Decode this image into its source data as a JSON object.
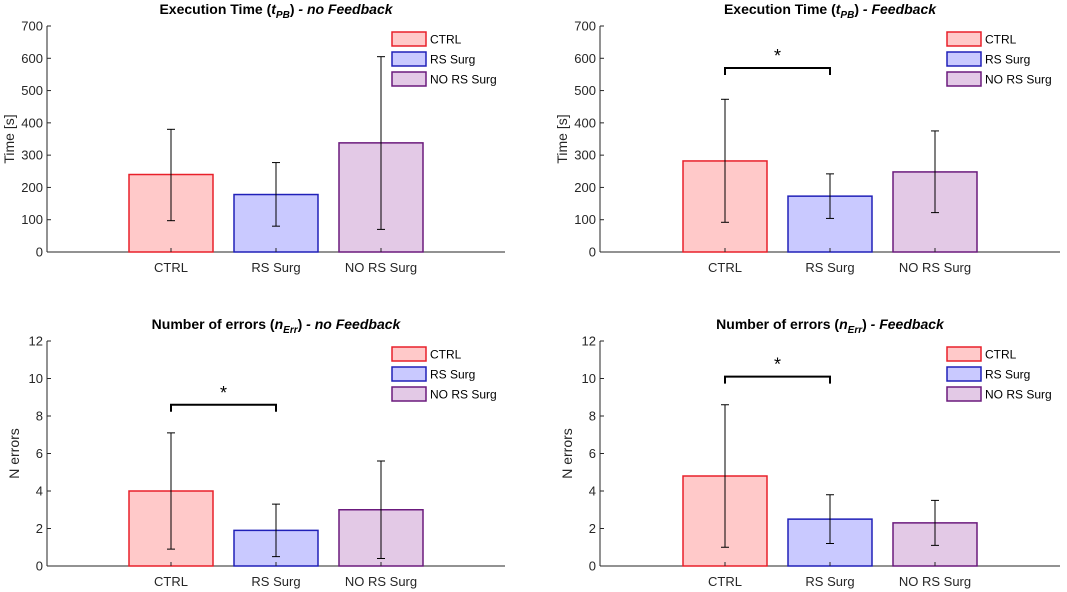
{
  "colors": {
    "CTRL": {
      "fill": "#ffc9c9",
      "stroke": "#e8202a"
    },
    "RS Surg": {
      "fill": "#c9c9ff",
      "stroke": "#2020b8"
    },
    "NO RS Surg": {
      "fill": "#e3c9e6",
      "stroke": "#6b1a7d"
    }
  },
  "chart_data": [
    {
      "type": "bar",
      "title_main": "Execution Time (",
      "title_var": "t",
      "title_sub": "PB",
      "title_close": ")",
      "title_suffix": " - no Feedback",
      "ylabel": "Time [s]",
      "ylim": [
        0,
        700
      ],
      "yticks": [
        0,
        100,
        200,
        300,
        400,
        500,
        600,
        700
      ],
      "categories": [
        "CTRL",
        "RS Surg",
        "NO RS Surg"
      ],
      "values": [
        240,
        178,
        338
      ],
      "err_low": [
        97,
        80,
        70
      ],
      "err_high": [
        380,
        277,
        605
      ],
      "legend": [
        "CTRL",
        "RS Surg",
        "NO RS Surg"
      ],
      "significance": null
    },
    {
      "type": "bar",
      "title_main": "Execution Time (",
      "title_var": "t",
      "title_sub": "PB",
      "title_close": ")",
      "title_suffix": " - Feedback",
      "ylabel": "Time [s]",
      "ylim": [
        0,
        700
      ],
      "yticks": [
        0,
        100,
        200,
        300,
        400,
        500,
        600,
        700
      ],
      "categories": [
        "CTRL",
        "RS Surg",
        "NO RS Surg"
      ],
      "values": [
        282,
        173,
        248
      ],
      "err_low": [
        92,
        104,
        122
      ],
      "err_high": [
        473,
        242,
        375
      ],
      "legend": [
        "CTRL",
        "RS Surg",
        "NO RS Surg"
      ],
      "significance": {
        "from": 0,
        "to": 1,
        "y": 570,
        "label": "*"
      }
    },
    {
      "type": "bar",
      "title_main": "Number of errors (",
      "title_var": "n",
      "title_sub": "Err",
      "title_close": ")",
      "title_suffix": " - no Feedback",
      "ylabel": "N errors",
      "ylim": [
        0,
        12
      ],
      "yticks": [
        0,
        2,
        4,
        6,
        8,
        10,
        12
      ],
      "categories": [
        "CTRL",
        "RS Surg",
        "NO RS Surg"
      ],
      "values": [
        4.0,
        1.9,
        3.0
      ],
      "err_low": [
        0.9,
        0.5,
        0.4
      ],
      "err_high": [
        7.1,
        3.3,
        5.6
      ],
      "legend": [
        "CTRL",
        "RS Surg",
        "NO RS Surg"
      ],
      "significance": {
        "from": 0,
        "to": 1,
        "y": 8.6,
        "label": "*"
      }
    },
    {
      "type": "bar",
      "title_main": "Number of errors (",
      "title_var": "n",
      "title_sub": "Err",
      "title_close": ")",
      "title_suffix": " - Feedback",
      "ylabel": "N errors",
      "ylim": [
        0,
        12
      ],
      "yticks": [
        0,
        2,
        4,
        6,
        8,
        10,
        12
      ],
      "categories": [
        "CTRL",
        "RS Surg",
        "NO RS Surg"
      ],
      "values": [
        4.8,
        2.5,
        2.3
      ],
      "err_low": [
        1.0,
        1.2,
        1.1
      ],
      "err_high": [
        8.6,
        3.8,
        3.5
      ],
      "legend": [
        "CTRL",
        "RS Surg",
        "NO RS Surg"
      ],
      "significance": {
        "from": 0,
        "to": 1,
        "y": 10.1,
        "label": "*"
      }
    }
  ]
}
